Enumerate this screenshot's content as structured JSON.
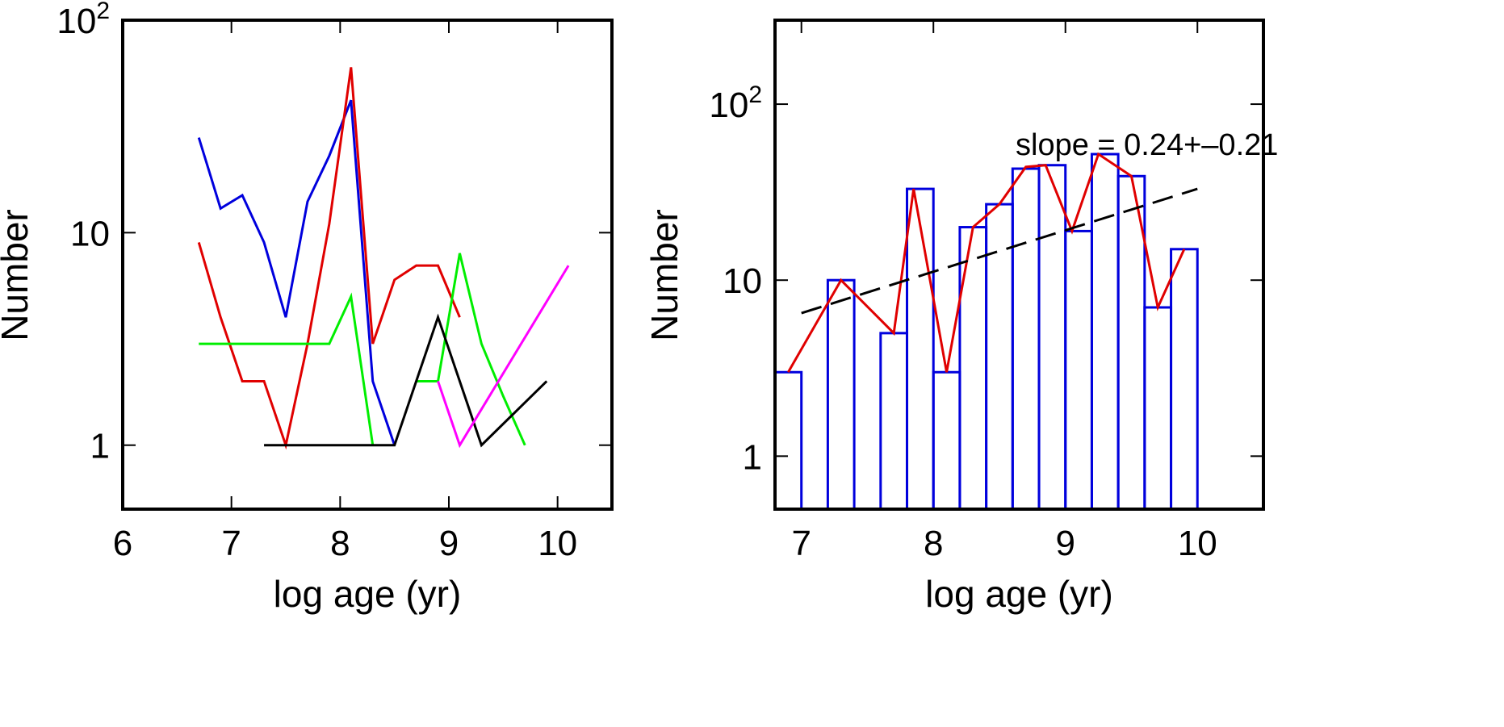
{
  "chart_data": [
    {
      "type": "line",
      "xlabel": "log age (yr)",
      "ylabel": "Number",
      "xlim": [
        6,
        10.5
      ],
      "ylim": [
        0.5,
        100
      ],
      "yscale": "log",
      "xticks": [
        6,
        7,
        8,
        9,
        10
      ],
      "xtick_labels": [
        "6",
        "7",
        "8",
        "9",
        "10"
      ],
      "yticks": [
        1,
        10,
        100
      ],
      "ytick_labels": [
        {
          "base": "1",
          "sup": ""
        },
        {
          "base": "10",
          "sup": ""
        },
        {
          "base": "10",
          "sup": "2"
        }
      ],
      "series": [
        {
          "name": "blue",
          "color": "#0000dd",
          "x": [
            6.7,
            6.9,
            7.1,
            7.3,
            7.5,
            7.7,
            7.9,
            8.1,
            8.3,
            8.5
          ],
          "y": [
            28,
            13,
            15,
            9,
            4,
            14,
            23,
            42,
            2,
            1
          ]
        },
        {
          "name": "red",
          "color": "#e00000",
          "x": [
            6.7,
            6.9,
            7.1,
            7.3,
            7.5,
            7.7,
            7.9,
            8.1,
            8.3,
            8.5,
            8.7,
            8.9,
            9.1
          ],
          "y": [
            9,
            4,
            2,
            2,
            1,
            3,
            11,
            60,
            3,
            6,
            7,
            7,
            4
          ]
        },
        {
          "name": "green",
          "color": "#00ee00",
          "x": [
            6.7,
            7.1,
            7.5,
            7.9,
            8.1,
            8.3
          ],
          "y": [
            3,
            3,
            3,
            3,
            5,
            1
          ]
        },
        {
          "name": "green-2",
          "color": "#00ee00",
          "x": [
            8.7,
            8.9,
            9.1,
            9.3,
            9.5,
            9.7
          ],
          "y": [
            2,
            2,
            8,
            3,
            1.7,
            1
          ]
        },
        {
          "name": "black",
          "color": "#000000",
          "x": [
            7.3,
            8.5,
            8.9,
            9.3,
            9.9
          ],
          "y": [
            1,
            1,
            4,
            1,
            2
          ]
        },
        {
          "name": "magenta",
          "color": "#ff00ff",
          "x": [
            8.9,
            9.1,
            10.1
          ],
          "y": [
            2,
            1,
            7
          ]
        }
      ]
    },
    {
      "type": "bar",
      "xlabel": "log age (yr)",
      "ylabel": "Number",
      "xlim": [
        6.8,
        10.5
      ],
      "ylim": [
        0.5,
        300
      ],
      "yscale": "log",
      "xticks": [
        7,
        8,
        9,
        10
      ],
      "xtick_labels": [
        "7",
        "8",
        "9",
        "10"
      ],
      "yticks": [
        1,
        10,
        100
      ],
      "ytick_labels": [
        {
          "base": "1",
          "sup": ""
        },
        {
          "base": "10",
          "sup": ""
        },
        {
          "base": "10",
          "sup": "2"
        }
      ],
      "annotation": "slope = 0.24+–0.21",
      "bar_width": 0.2,
      "bars": {
        "color": "#0000dd",
        "centers": [
          6.9,
          7.3,
          7.7,
          7.9,
          8.1,
          8.3,
          8.5,
          8.7,
          8.9,
          9.1,
          9.3,
          9.5,
          9.7,
          9.9
        ],
        "values": [
          3,
          10,
          5,
          33,
          3,
          20,
          27,
          43,
          45,
          19,
          52,
          39,
          7,
          15
        ]
      },
      "line": {
        "color": "#e00000",
        "x": [
          6.9,
          7.3,
          7.7,
          7.85,
          8.1,
          8.3,
          8.5,
          8.7,
          8.85,
          9.05,
          9.25,
          9.5,
          9.7,
          9.9
        ],
        "y": [
          3,
          10,
          5,
          33,
          3,
          20,
          27,
          44,
          45,
          19,
          52,
          39,
          7,
          15
        ]
      },
      "fit": {
        "color": "#000000",
        "x": [
          7.0,
          10.0
        ],
        "y": [
          6.5,
          33
        ]
      }
    }
  ]
}
